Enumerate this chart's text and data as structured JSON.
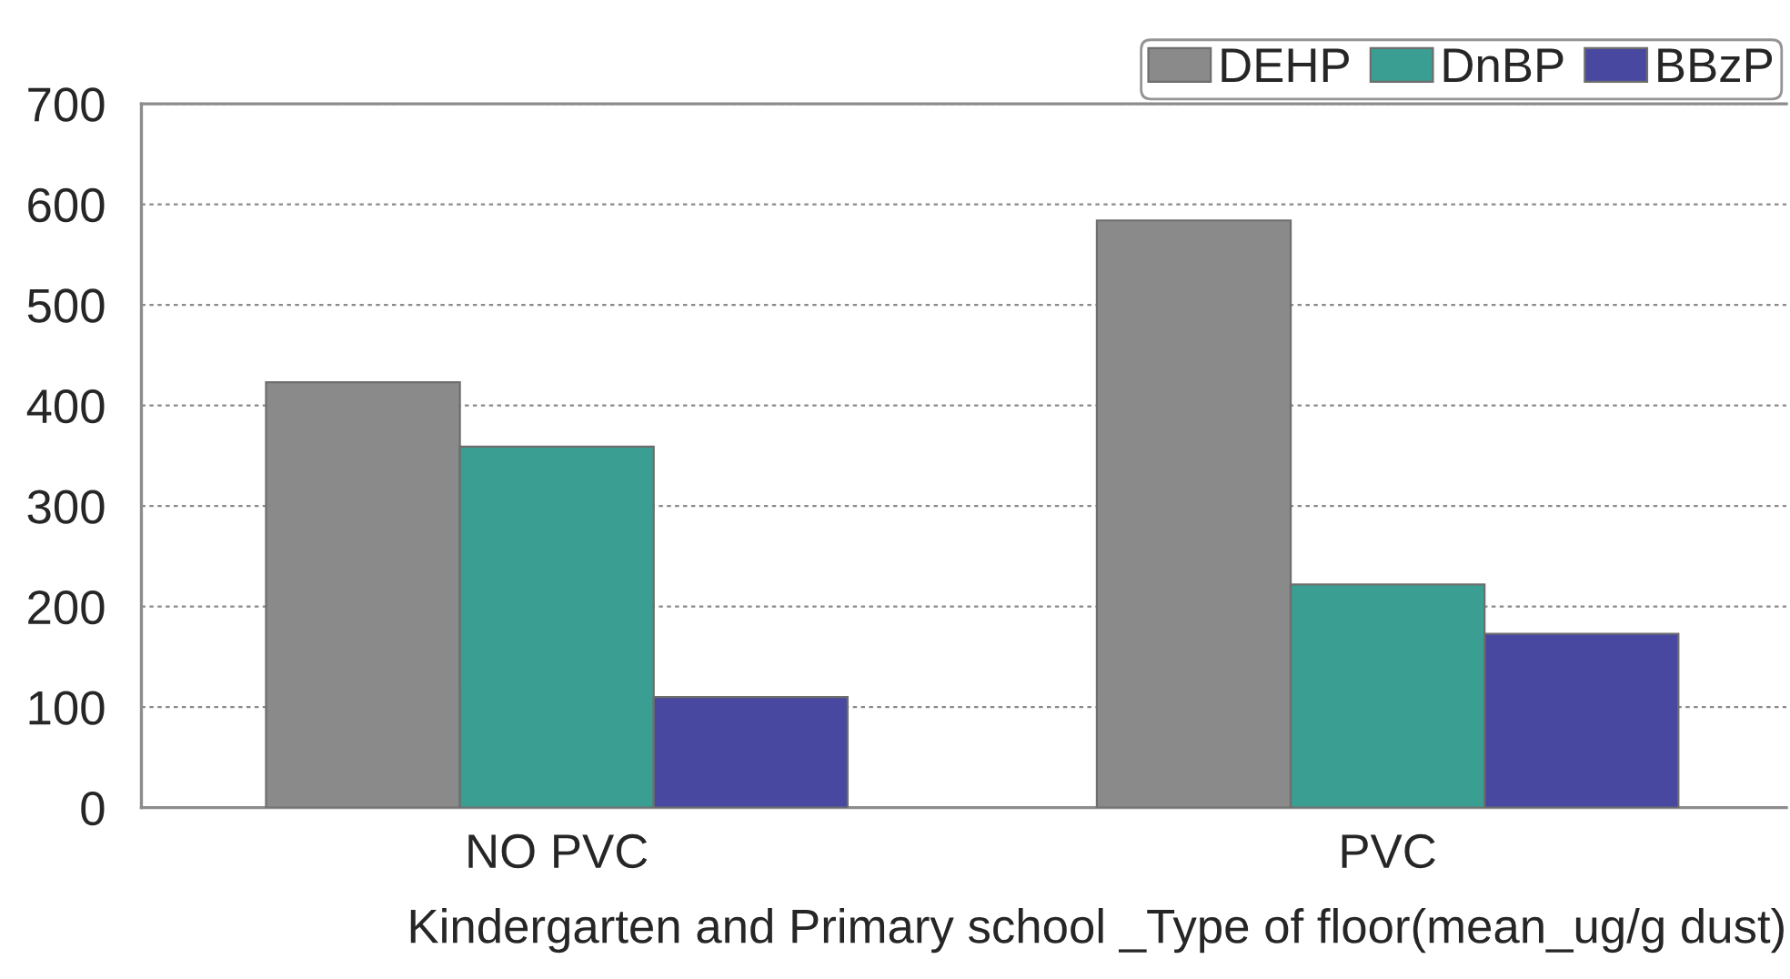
{
  "chart_data": {
    "type": "bar",
    "categories": [
      "NO PVC",
      "PVC"
    ],
    "series": [
      {
        "name": "DEHP",
        "color": "#8a8a8a",
        "values": [
          423,
          584
        ]
      },
      {
        "name": "DnBP",
        "color": "#3a9e92",
        "values": [
          359,
          222
        ]
      },
      {
        "name": "BBzP",
        "color": "#4848a0",
        "values": [
          110,
          173
        ]
      }
    ],
    "xlabel": "Kindergarten and Primary school _Type of floor(mean_ug/g dust)",
    "ylim": [
      0,
      700
    ],
    "yticks": [
      0,
      100,
      200,
      300,
      400,
      500,
      600,
      700
    ],
    "grid": "y",
    "legend": "top right"
  }
}
